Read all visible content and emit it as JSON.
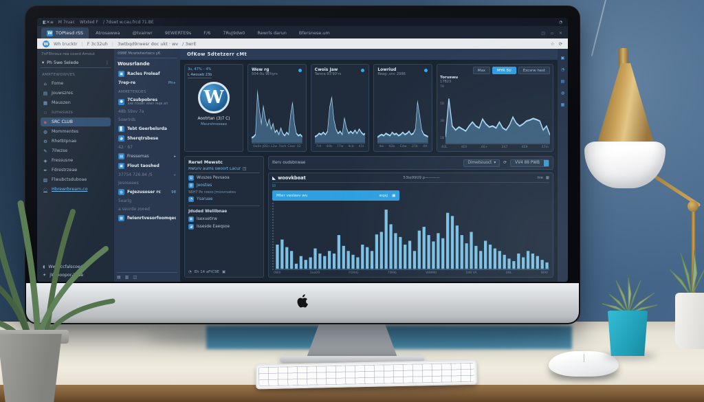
{
  "palette": {
    "accent": "#3aa9e8",
    "accent_bright": "#2f9fe0",
    "bar_fill": "#7cc1e4",
    "wall": "#3c5a7a",
    "desk": "#ece8dc",
    "wood": "#7d5c38",
    "teal_pot": "#21a0b8",
    "brass": "#c9a257"
  },
  "browser": {
    "menubar": {
      "icons": [
        "◧",
        "✕",
        "≡"
      ],
      "items": [
        "M 7ruac",
        "Wtxted F",
        "/ 7dswt w.cau.frcd  71.BE"
      ],
      "right_icon": "◔"
    },
    "tabs": {
      "active": {
        "favicon": "W",
        "label": "TOPtesd rSS"
      },
      "others": [
        "Atrosawwa",
        "@tvairwr",
        "9EWERTE9s",
        "F/6",
        "7RuJ9dw0",
        "Rewrls darun",
        "Bfersnese.um"
      ],
      "right_icons": [
        "◳",
        "▫",
        "✕"
      ]
    },
    "address": {
      "favicon": "W",
      "segments": [
        "Wh trucktr",
        "F 3c32uh",
        "3wtbqd9rwesr doc ukt · wv",
        "/ 3wrE"
      ],
      "right_icons": [
        "☆",
        "⟳"
      ]
    }
  },
  "sidebar": {
    "header": "7nF5hrous rea coord Amout",
    "search": {
      "icon": "▾",
      "label": "Ph  5we Selede",
      "menu_icon": "⋮"
    },
    "section": "AMRTEWOWVES",
    "items": [
      {
        "icon": "⌂",
        "icon_name": "home-icon",
        "label": "Fome"
      },
      {
        "icon": "▤",
        "icon_name": "posts-icon",
        "label": "Jouwszres"
      },
      {
        "icon": "▦",
        "icon_name": "media-icon",
        "label": "Mauszen"
      },
      {
        "icon": "▫",
        "icon_name": "pages-icon",
        "label": "Iumeswzs",
        "muted": true
      },
      {
        "icon": "▪",
        "icon_name": "plugin-icon",
        "label": "SRC CLUB",
        "selected": true
      },
      {
        "icon": "◍",
        "icon_name": "comments-icon",
        "label": "Mommentes"
      },
      {
        "icon": "⚙",
        "icon_name": "settings-icon",
        "label": "Rhetblpnae"
      },
      {
        "icon": "✎",
        "icon_name": "edit-icon",
        "label": "7ilwzse"
      },
      {
        "icon": "◈",
        "icon_name": "themes-icon",
        "label": "Fressusne"
      },
      {
        "icon": "✒",
        "icon_name": "tools-icon",
        "label": "Fdrestrzeae"
      },
      {
        "icon": "▧",
        "icon_name": "analytics-icon",
        "label": "Flwubctsduboae"
      },
      {
        "icon": "◌",
        "icon_name": "link-icon",
        "label": "Hbrewrbream.co",
        "accent": true
      }
    ],
    "footer": [
      {
        "icon": "◖",
        "icon_name": "collapse-icon",
        "label": "Ww occfalscoed"
      },
      {
        "icon": "✦",
        "icon_name": "pen-icon",
        "label": "jWrooopor-bose"
      }
    ]
  },
  "subsidebar": {
    "top": "098E  Mcwtetwrtwcs  y6",
    "title": "Wousrlande",
    "rows": [
      {
        "icon": "▣",
        "label": "Racles Froleaf",
        "bold": true
      },
      {
        "label": "7rep-re",
        "trail": "Ph+",
        "bold": true
      },
      {
        "label": "AMMETENDES",
        "section": true
      },
      {
        "icon": "●",
        "label": "7Csubpobres",
        "sub": "Tow Ftsder Tewh reqe aff",
        "bold": true
      },
      {
        "label": "48b 59xv 7a",
        "muted": true
      },
      {
        "label": "5swrlrds",
        "muted": true
      },
      {
        "icon": "▊",
        "label": "Tebt Geerbelsrda",
        "bold": true
      },
      {
        "icon": "◕",
        "label": "5herqtrsbese",
        "bold": true
      },
      {
        "label": "42 · 67",
        "muted": true
      },
      {
        "icon": "▤",
        "label": "Fressemas",
        "trail": "▸"
      },
      {
        "icon": "▣",
        "label": "Flout taoshed",
        "bold": true
      },
      {
        "label": "37754 726.84 /5",
        "muted": true,
        "trail": "▸"
      },
      {
        "label": "Jesoseaes",
        "muted": true
      },
      {
        "icon": "◍",
        "label": "FeJezusoser rc",
        "trail": "98",
        "bold": true
      },
      {
        "label": "5earlg",
        "muted": true
      },
      {
        "label": "a seurde zooed",
        "muted": true
      },
      {
        "icon": "▦",
        "label": "fwienrtvesorfoomqedf",
        "bold": true
      }
    ],
    "footer_icons": [
      "▤",
      "▥",
      "◫"
    ]
  },
  "main": {
    "header": "OfKow  5dtetzerr cMt",
    "wp_card": {
      "top1": "3u, 47% – 4%",
      "top2": "L 4woueb 23b",
      "logo": "W",
      "name": "Aootrtan (3)7 C)",
      "sub": "Meurshneseao"
    },
    "stat_cards": [
      {
        "title": "Wew rg",
        "subtitle": "504-0u 9Ehyrs"
      },
      {
        "title": "Cwois Jaw",
        "subtitle": "Tarora 93'90'rs"
      },
      {
        "title": "Lowriud",
        "subtitle": "Reag-,vnc 2986"
      }
    ],
    "wide_card": {
      "buttons": [
        {
          "label": "Max"
        },
        {
          "label": "MYR 5U",
          "primary": true
        },
        {
          "label": "Excsrw hest"
        }
      ],
      "title": "Toruswu",
      "subtitle": "17B23"
    },
    "recent": {
      "title": "Rerwl Mewstc",
      "link": {
        "label": "RwGrv aums swoort Lacur",
        "icon": "◳"
      },
      "row1": {
        "icon": "▤",
        "label": "Wuszes Pevsaoa"
      },
      "row2": {
        "icon": "▥",
        "label": "Jeosties"
      },
      "note": "5BH7 Pe rzeoo Jmosvrvates",
      "row3": {
        "icon": "◔",
        "label": "Ysaruae"
      },
      "subtitle": "Jdsded Welilbnae",
      "row4": {
        "icon": "▦",
        "label": "Isexuetlrw"
      },
      "row5": {
        "icon": "◪",
        "label": "Issesde Eaeqsoe"
      },
      "footer": {
        "label": "Eh 14 aFtC9E",
        "icons": [
          "◔",
          "▣"
        ]
      }
    },
    "analytics": {
      "toolbar": {
        "left": "Iterv oudsbnwae",
        "dropdown": "Dimetsiuoct",
        "dropdown_icon": "▾",
        "refresh_icon": "⟳",
        "button": "VV4 88 PWB"
      },
      "panel": {
        "title": "woovkboat",
        "title_icon": "◣",
        "center": "53te99U9 p————",
        "right": "me",
        "grid_icon": "▦",
        "check_icon": "☑"
      },
      "highlight": {
        "label": "Mter veslasv wu",
        "mid": "≡qsJ",
        "icon": "▣"
      }
    }
  },
  "right_rail": {
    "icons": [
      "▣",
      "◔",
      "▤",
      "◍",
      "▦"
    ]
  },
  "chart_data": [
    {
      "type": "area",
      "title": "Wew rg",
      "subtitle": "504-0u 9Ehyrs",
      "values": [
        4,
        6,
        10,
        88,
        55,
        30,
        62,
        40,
        26,
        38,
        20,
        30,
        14,
        18,
        10,
        22,
        12,
        8,
        14,
        10,
        46,
        68,
        30,
        12,
        8,
        10,
        6
      ],
      "xlabels": [
        "0w0s",
        "J0En",
        "L2w",
        "7ach",
        "Cawr",
        "02"
      ],
      "ylim": [
        0,
        100
      ],
      "grid": false,
      "legend": "none"
    },
    {
      "type": "area",
      "title": "Cwois Jaw",
      "subtitle": "Tarora 93'90'rs",
      "values": [
        6,
        8,
        12,
        10,
        14,
        10,
        16,
        60,
        78,
        38,
        20,
        12,
        16,
        10,
        40,
        22,
        12,
        16,
        12,
        18,
        12,
        20,
        14,
        10,
        12
      ],
      "xlabels": [
        "7rd",
        "40b",
        "77w",
        "9cb",
        "41t"
      ],
      "ylim": [
        0,
        100
      ],
      "grid": false,
      "legend": "none"
    },
    {
      "type": "area",
      "title": "Lowriud",
      "subtitle": "Reag-,vnc 2986",
      "values": [
        5,
        8,
        10,
        8,
        12,
        10,
        8,
        14,
        10,
        12,
        8,
        10,
        14,
        10,
        12,
        16,
        10,
        12,
        20,
        70,
        45,
        18,
        10,
        8,
        6
      ],
      "xlabels": [
        "4w",
        "92b",
        "C4w",
        "27b",
        "49"
      ],
      "ylim": [
        0,
        100
      ],
      "grid": false,
      "legend": "none"
    },
    {
      "type": "area",
      "title": "Toruswu",
      "subtitle": "17B23",
      "values": [
        8,
        85,
        30,
        22,
        28,
        24,
        20,
        30,
        38,
        30,
        26,
        44,
        34,
        28,
        30,
        26,
        38,
        26,
        22,
        32,
        48,
        36,
        30,
        34,
        40,
        42,
        45,
        43,
        40,
        22,
        30,
        12
      ],
      "xlabels": [
        "40L",
        "4E0",
        "46+",
        "247",
        "4E9",
        "47m"
      ],
      "ylabels": [
        "7B",
        "5B",
        "3B",
        "1B"
      ],
      "ylim": [
        0,
        100
      ],
      "grid": false,
      "legend": "none"
    },
    {
      "type": "bar",
      "values": [
        40,
        48,
        36,
        30,
        10,
        22,
        16,
        20,
        34,
        26,
        22,
        30,
        26,
        55,
        38,
        30,
        24,
        20,
        40,
        36,
        30,
        56,
        60,
        95,
        72,
        58,
        52,
        40,
        46,
        30,
        62,
        68,
        55,
        45,
        58,
        50,
        90,
        85,
        70,
        55,
        42,
        60,
        38,
        30,
        46,
        40,
        34,
        30,
        24,
        18,
        14,
        26,
        20,
        30,
        26,
        22,
        16,
        12
      ],
      "xlabels": [
        "0W0",
        "3oo09",
        "FO9IG",
        "7W9b",
        "WWM0",
        "549 VA",
        "09L",
        "W90"
      ],
      "ylim": [
        0,
        100
      ],
      "grid": false,
      "legend": "none"
    }
  ]
}
